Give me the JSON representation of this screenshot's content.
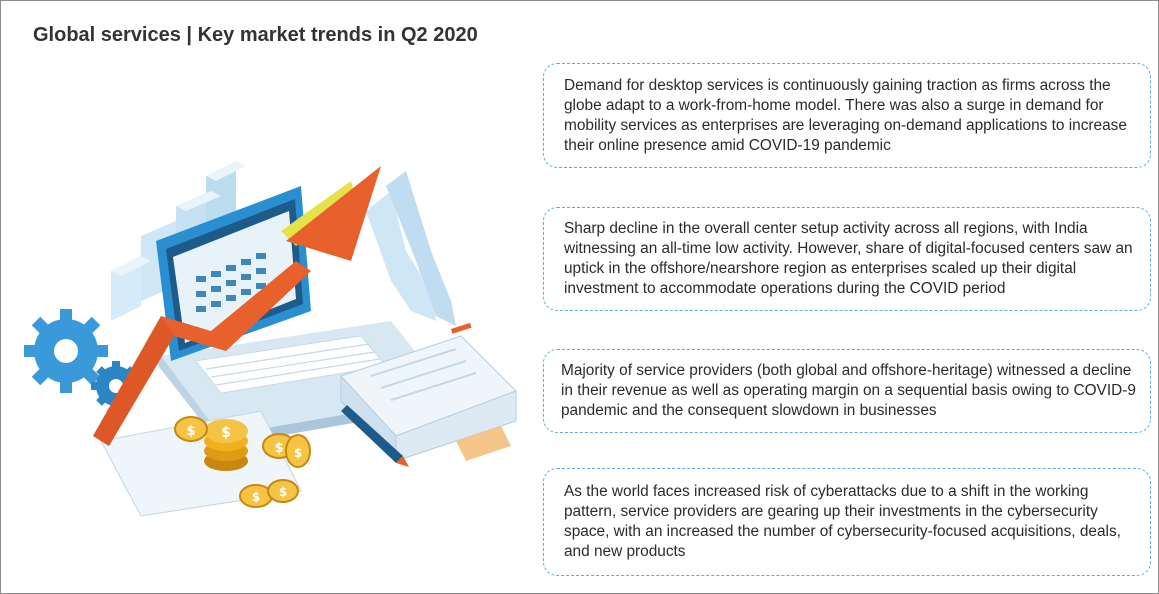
{
  "header": {
    "title": "Global services | Key market trends in Q2 2020"
  },
  "trends": [
    {
      "text": "Demand for desktop services is continuously gaining traction as firms across the globe adapt to a work-from-home model. There was also a surge in demand for mobility services as enterprises are leveraging on-demand applications to increase their online presence amid COVID-19 pandemic"
    },
    {
      "text": "Sharp decline in the overall center setup activity across all regions, with India witnessing an all-time low activity. However, share of digital-focused centers saw an uptick in the offshore/nearshore region as enterprises scaled up their digital investment to accommodate operations during the COVID period"
    },
    {
      "text": "Majority of service providers (both global and offshore-heritage) witnessed a decline in their revenue as well as operating margin on a sequential basis owing to COVID-9 pandemic and the consequent slowdown in businesses"
    },
    {
      "text": "As the world faces increased risk of cyberattacks due to a shift in the working pattern, service providers are gearing up their investments in the cybersecurity space, with an increased the number of cybersecurity-focused acquisitions, deals, and new products"
    }
  ],
  "illustration": {
    "icons": [
      "laptop-icon",
      "growth-arrow-icon",
      "gear-icon",
      "dollar-coin-icon",
      "document-stack-icon",
      "pencil-icon",
      "bar-chart-icon"
    ],
    "colors": {
      "laptop_blue": "#2a8fd0",
      "screen_dark": "#1d5c8a",
      "arrow_orange": "#e8602c",
      "arrow_tip_yellow": "#e6e24a",
      "gear_blue": "#3a9ad9",
      "coin_gold": "#f2b01e",
      "light_blue": "#cfe6f5"
    }
  }
}
